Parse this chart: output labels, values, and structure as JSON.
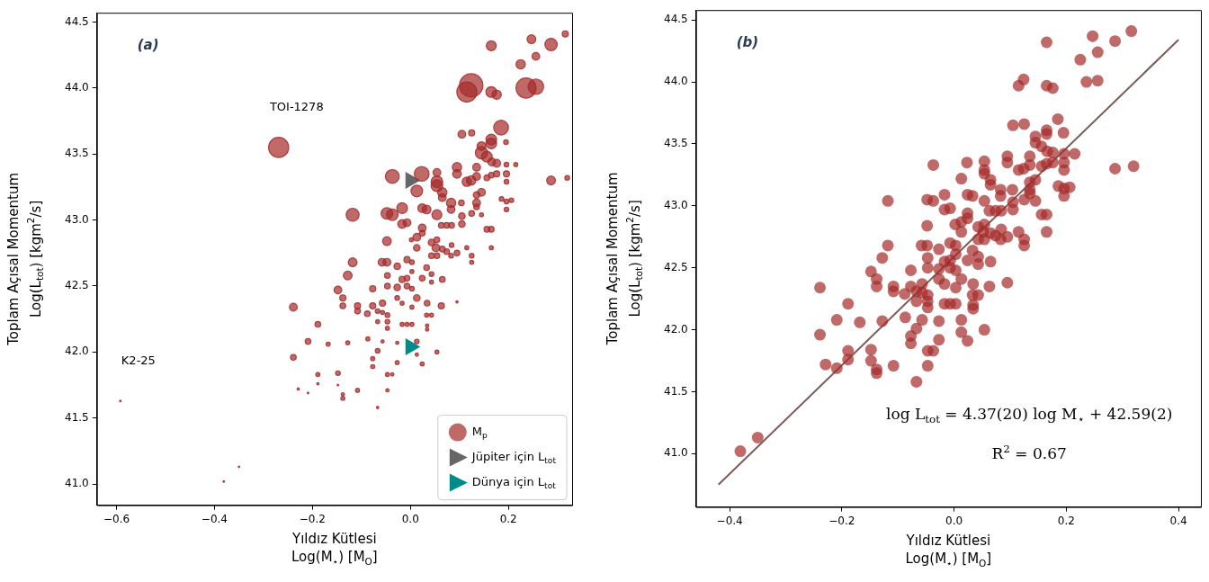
{
  "chart_data": [
    {
      "type": "bubble",
      "xlabel": "Yıldız Kütlesi\nLog(M$_{⋆}$) [M$_{O}$]",
      "ylabel": "Toplam Açısal Momentum\nLog(L$_{tot}$) [kgm$^{2}$/s]",
      "xlim": [
        -0.64,
        0.33
      ],
      "ylim": [
        40.84,
        44.57
      ],
      "xticks": [
        {
          "value": -0.6,
          "label": "−0.6"
        },
        {
          "value": -0.4,
          "label": "−0.4"
        },
        {
          "value": -0.2,
          "label": "−0.2"
        },
        {
          "value": 0,
          "label": "0.0"
        },
        {
          "value": 0.2,
          "label": "0.2"
        }
      ],
      "yticks": [
        {
          "value": 41,
          "label": "41.0"
        },
        {
          "value": 41.5,
          "label": "41.5"
        },
        {
          "value": 42,
          "label": "42.0"
        },
        {
          "value": 42.5,
          "label": "42.5"
        },
        {
          "value": 43,
          "label": "43.0"
        },
        {
          "value": 43.5,
          "label": "43.5"
        },
        {
          "value": 44,
          "label": "44.0"
        },
        {
          "value": 44.5,
          "label": "44.5"
        }
      ],
      "legend": "bottom right",
      "annotations": [
        "(a)",
        {
          "text": "TOI-1278",
          "x": -0.269,
          "y": 43.55
        },
        {
          "text": "K2-25",
          "x": -0.592,
          "y": 41.63
        }
      ],
      "series": [
        {
          "name": "M$_{p}$",
          "color": "#a52a2a",
          "x": [
            -0.269,
            0.124,
            0.115,
            0.165,
            0.176,
            0.236,
            0.256,
            0.165,
            0.247,
            0.287,
            0.316,
            0.256,
            0.225,
            0.185,
            0.105,
            0.125,
            0.165,
            0.165,
            0.145,
            0.145,
            0.156,
            0.166,
            0.176,
            0.195,
            0.196,
            0.215,
            0.196,
            0.196,
            0.287,
            0.32,
            -0.037,
            0.023,
            0.013,
            0.054,
            0.054,
            0.054,
            0.065,
            0.065,
            0.095,
            0.095,
            0.115,
            0.124,
            0.135,
            0.135,
            0.135,
            0.145,
            0.156,
            0.165,
            0.176,
            0.083,
            0.083,
            0.104,
            0.135,
            0.135,
            0.105,
            0.125,
            0.105,
            0.145,
            0.156,
            0.165,
            0.186,
            0.206,
            0.196,
            0.196,
            0.165,
            0.115,
            0.125,
            0.125,
            -0.118,
            -0.048,
            -0.037,
            -0.017,
            0.024,
            0.033,
            0.054,
            -0.017,
            -0.007,
            0.024,
            0.024,
            0.013,
            0.002,
            0.063,
            0.074,
            0.084,
            -0.048,
            0.013,
            0.043,
            0.054,
            0.052,
            0.065,
            0.074,
            0.084,
            0.095,
            0.043,
            0.054,
            0.083,
            -0.118,
            -0.058,
            -0.048,
            -0.007,
            0.003,
            -0.128,
            -0.148,
            -0.138,
            -0.239,
            -0.138,
            -0.108,
            -0.108,
            -0.088,
            -0.077,
            -0.077,
            -0.057,
            -0.047,
            -0.047,
            -0.027,
            -0.027,
            -0.017,
            -0.007,
            -0.007,
            0.003,
            0.003,
            0.013,
            0.024,
            0.033,
            0.043,
            0.043,
            0.065,
            0.034,
            0.063,
            0.043,
            0.033,
            -0.027,
            -0.017,
            0.003,
            -0.067,
            -0.057,
            -0.047,
            -0.067,
            -0.047,
            -0.047,
            -0.017,
            -0.007,
            0.003,
            0.034,
            0.034,
            0.095,
            -0.189,
            -0.209,
            -0.168,
            -0.128,
            -0.087,
            -0.057,
            -0.067,
            -0.027,
            -0.239,
            -0.077,
            -0.027,
            0.013,
            0.013,
            0.024,
            0.054,
            -0.189,
            -0.148,
            -0.077,
            -0.047,
            -0.037,
            -0.189,
            -0.148,
            -0.229,
            -0.209,
            -0.138,
            -0.138,
            -0.108,
            -0.047,
            -0.067,
            -0.592,
            -0.35,
            -0.381
          ],
          "values": [
            43.55,
            44.02,
            43.97,
            43.97,
            43.95,
            44.0,
            44.01,
            44.32,
            44.37,
            44.33,
            44.41,
            44.24,
            44.18,
            43.7,
            43.65,
            43.66,
            43.61,
            43.58,
            43.56,
            43.51,
            43.48,
            43.44,
            43.43,
            43.59,
            43.42,
            43.42,
            43.35,
            43.29,
            43.3,
            43.32,
            43.33,
            43.35,
            43.22,
            43.36,
            43.29,
            43.26,
            43.21,
            43.17,
            43.4,
            43.35,
            43.29,
            43.3,
            43.4,
            43.33,
            43.19,
            43.21,
            43.32,
            43.34,
            43.35,
            43.13,
            43.08,
            43.13,
            43.13,
            43.1,
            43.03,
            43.05,
            42.97,
            43.04,
            42.93,
            42.93,
            43.16,
            43.15,
            43.14,
            43.08,
            42.79,
            42.79,
            42.73,
            42.68,
            43.04,
            43.05,
            43.04,
            43.09,
            43.09,
            43.08,
            43.04,
            42.97,
            42.98,
            42.94,
            42.9,
            42.87,
            42.85,
            42.96,
            42.96,
            42.96,
            42.84,
            42.79,
            42.83,
            42.85,
            42.79,
            42.78,
            42.76,
            42.81,
            42.75,
            42.73,
            42.73,
            42.73,
            42.68,
            42.68,
            42.68,
            42.7,
            42.68,
            42.58,
            42.47,
            42.41,
            42.34,
            42.35,
            42.35,
            42.31,
            42.29,
            42.48,
            42.35,
            42.37,
            42.58,
            42.5,
            42.65,
            42.49,
            42.55,
            42.56,
            42.5,
            42.61,
            42.48,
            42.41,
            42.56,
            42.64,
            42.59,
            42.53,
            42.55,
            42.37,
            42.35,
            42.28,
            42.28,
            42.41,
            42.37,
            42.34,
            42.31,
            42.3,
            42.28,
            42.23,
            42.23,
            42.18,
            42.21,
            42.21,
            42.21,
            42.2,
            42.17,
            42.38,
            42.21,
            42.08,
            42.06,
            42.07,
            42.1,
            42.08,
            42.01,
            42.07,
            41.96,
            41.95,
            41.92,
            42.08,
            41.98,
            41.91,
            42.0,
            41.83,
            41.84,
            41.89,
            41.83,
            41.83,
            41.76,
            41.75,
            41.72,
            41.69,
            41.68,
            41.65,
            41.71,
            41.71,
            41.58,
            41.63,
            41.13,
            41.02
          ],
          "sizes": [
            0.74,
            1,
            0.74,
            0.21,
            0.16,
            0.74,
            0.44,
            0.18,
            0.14,
            0.28,
            0.07,
            0.11,
            0.16,
            0.4,
            0.11,
            0.07,
            0.21,
            0.21,
            0.14,
            0.28,
            0.21,
            0.11,
            0.11,
            0.04,
            0.04,
            0.03,
            0.07,
            0.04,
            0.14,
            0.04,
            0.35,
            0.4,
            0.25,
            0.11,
            0.25,
            0.25,
            0.16,
            0.11,
            0.16,
            0.14,
            0.16,
            0.16,
            0.11,
            0.11,
            0.08,
            0.11,
            0.06,
            0.06,
            0.07,
            0.16,
            0.11,
            0.06,
            0.11,
            0.06,
            0.08,
            0.06,
            0.08,
            0.03,
            0.06,
            0.06,
            0.04,
            0.04,
            0.04,
            0.04,
            0.03,
            0.03,
            0.04,
            0.03,
            0.31,
            0.25,
            0.25,
            0.21,
            0.14,
            0.14,
            0.18,
            0.14,
            0.11,
            0.11,
            0.06,
            0.11,
            0.03,
            0.06,
            0.06,
            0.06,
            0.14,
            0.08,
            0.08,
            0.06,
            0.11,
            0.06,
            0.06,
            0.04,
            0.06,
            0.06,
            0.06,
            0.04,
            0.14,
            0.11,
            0.11,
            0.07,
            0.04,
            0.14,
            0.11,
            0.07,
            0.11,
            0.06,
            0.07,
            0.06,
            0.06,
            0.07,
            0.07,
            0.07,
            0.06,
            0.06,
            0.08,
            0.08,
            0.07,
            0.06,
            0.06,
            0.03,
            0.04,
            0.08,
            0.06,
            0.06,
            0.04,
            0.03,
            0.06,
            0.06,
            0.07,
            0.03,
            0.03,
            0.04,
            0.03,
            0.03,
            0.04,
            0.03,
            0.04,
            0.03,
            0.04,
            0.03,
            0.03,
            0.03,
            0.03,
            0.02,
            0.02,
            0.01,
            0.06,
            0.06,
            0.03,
            0.03,
            0.03,
            0.02,
            0.04,
            0.02,
            0.06,
            0.03,
            0.03,
            0.04,
            0.02,
            0.03,
            0.03,
            0.03,
            0.04,
            0.03,
            0.03,
            0.02,
            0.01,
            0.005,
            0.01,
            0.005,
            0.02,
            0.03,
            0.03,
            0.02,
            0.01,
            0.005,
            0.004,
            0.005
          ]
        },
        {
          "name": "Jüpiter için L$_{tot}$",
          "type": "scatter",
          "marker": "triangle",
          "color": "#666666",
          "x": [
            0
          ],
          "values": [
            43.3
          ]
        },
        {
          "name": "Dünya için L$_{tot}$",
          "type": "scatter",
          "marker": "triangle",
          "color": "#008b8b",
          "x": [
            0
          ],
          "values": [
            42.04
          ]
        }
      ]
    },
    {
      "type": "scatter",
      "xlabel": "Yıldız Kütlesi\nLog(M$_{⋆}$) [M$_{O}$]",
      "ylabel": "Toplam Açısal Momentum\nLog(L$_{tot}$) [kgm$^{2}$/s]",
      "xlim": [
        -0.46,
        0.44
      ],
      "ylim": [
        40.57,
        44.58
      ],
      "xticks": [
        {
          "value": -0.4,
          "label": "−0.4"
        },
        {
          "value": -0.2,
          "label": "−0.2"
        },
        {
          "value": 0,
          "label": "0.0"
        },
        {
          "value": 0.2,
          "label": "0.2"
        },
        {
          "value": 0.4,
          "label": "0.4"
        }
      ],
      "yticks": [
        {
          "value": 41,
          "label": "41.0"
        },
        {
          "value": 41.5,
          "label": "41.5"
        },
        {
          "value": 42,
          "label": "42.0"
        },
        {
          "value": 42.5,
          "label": "42.5"
        },
        {
          "value": 43,
          "label": "43.0"
        },
        {
          "value": 43.5,
          "label": "43.5"
        },
        {
          "value": 44,
          "label": "44.0"
        },
        {
          "value": 44.5,
          "label": "44.5"
        }
      ],
      "annotations": [
        "(b)",
        "log L$_{tot}$ = 4.37(20) log M$_{⋆}$ + 42.59(2)",
        "R$^{2}$ = 0.67"
      ],
      "series": [
        {
          "color": "#a52a2a",
          "marker": "circle",
          "x": [
            0.124,
            0.115,
            0.165,
            0.176,
            0.236,
            0.256,
            0.165,
            0.247,
            0.287,
            0.316,
            0.256,
            0.225,
            0.185,
            0.105,
            0.125,
            0.165,
            0.165,
            0.145,
            0.145,
            0.156,
            0.166,
            0.176,
            0.195,
            0.196,
            0.215,
            0.196,
            0.196,
            0.287,
            0.32,
            -0.037,
            0.023,
            0.013,
            0.054,
            0.054,
            0.054,
            0.065,
            0.065,
            0.095,
            0.095,
            0.115,
            0.124,
            0.135,
            0.135,
            0.135,
            0.145,
            0.156,
            0.165,
            0.176,
            0.083,
            0.083,
            0.104,
            0.135,
            0.135,
            0.105,
            0.125,
            0.105,
            0.145,
            0.156,
            0.165,
            0.186,
            0.206,
            0.196,
            0.196,
            0.165,
            0.115,
            0.125,
            0.125,
            -0.118,
            -0.048,
            -0.037,
            -0.017,
            0.024,
            0.033,
            0.054,
            -0.017,
            -0.007,
            0.024,
            0.024,
            0.013,
            0.002,
            0.063,
            0.074,
            0.084,
            -0.048,
            0.013,
            0.043,
            0.054,
            0.052,
            0.065,
            0.074,
            0.084,
            0.095,
            0.043,
            0.054,
            0.083,
            -0.118,
            -0.058,
            -0.048,
            -0.007,
            0.003,
            -0.128,
            -0.148,
            -0.138,
            -0.239,
            -0.138,
            -0.108,
            -0.108,
            -0.088,
            -0.077,
            -0.077,
            -0.057,
            -0.047,
            -0.047,
            -0.027,
            -0.027,
            -0.017,
            -0.007,
            -0.007,
            0.003,
            0.003,
            0.013,
            0.024,
            0.033,
            0.043,
            0.043,
            0.065,
            0.034,
            0.063,
            0.043,
            0.033,
            -0.027,
            -0.017,
            0.003,
            -0.067,
            -0.057,
            -0.047,
            -0.067,
            -0.047,
            -0.047,
            -0.017,
            -0.007,
            0.003,
            0.034,
            0.034,
            0.095,
            -0.189,
            -0.209,
            -0.168,
            -0.128,
            -0.087,
            -0.057,
            -0.067,
            -0.027,
            -0.239,
            -0.077,
            -0.027,
            0.013,
            0.013,
            0.024,
            0.054,
            -0.189,
            -0.148,
            -0.077,
            -0.047,
            -0.037,
            -0.189,
            -0.148,
            -0.229,
            -0.209,
            -0.138,
            -0.138,
            -0.108,
            -0.047,
            -0.067,
            -0.35,
            -0.381
          ],
          "values": [
            44.02,
            43.97,
            43.97,
            43.95,
            44.0,
            44.01,
            44.32,
            44.37,
            44.33,
            44.41,
            44.24,
            44.18,
            43.7,
            43.65,
            43.66,
            43.61,
            43.58,
            43.56,
            43.51,
            43.48,
            43.44,
            43.43,
            43.59,
            43.42,
            43.42,
            43.35,
            43.29,
            43.3,
            43.32,
            43.33,
            43.35,
            43.22,
            43.36,
            43.29,
            43.26,
            43.21,
            43.17,
            43.4,
            43.35,
            43.29,
            43.3,
            43.4,
            43.33,
            43.19,
            43.21,
            43.32,
            43.34,
            43.35,
            43.13,
            43.08,
            43.13,
            43.13,
            43.1,
            43.03,
            43.05,
            42.97,
            43.04,
            42.93,
            42.93,
            43.16,
            43.15,
            43.14,
            43.08,
            42.79,
            42.79,
            42.73,
            42.68,
            43.04,
            43.05,
            43.04,
            43.09,
            43.09,
            43.08,
            43.04,
            42.97,
            42.98,
            42.94,
            42.9,
            42.87,
            42.85,
            42.96,
            42.96,
            42.96,
            42.84,
            42.79,
            42.83,
            42.85,
            42.79,
            42.78,
            42.76,
            42.81,
            42.75,
            42.73,
            42.73,
            42.73,
            42.68,
            42.68,
            42.68,
            42.7,
            42.68,
            42.58,
            42.47,
            42.41,
            42.34,
            42.35,
            42.35,
            42.31,
            42.29,
            42.48,
            42.35,
            42.37,
            42.58,
            42.5,
            42.65,
            42.49,
            42.55,
            42.56,
            42.5,
            42.61,
            42.48,
            42.41,
            42.56,
            42.64,
            42.59,
            42.53,
            42.55,
            42.37,
            42.35,
            42.28,
            42.28,
            42.41,
            42.37,
            42.34,
            42.31,
            42.3,
            42.28,
            42.23,
            42.23,
            42.18,
            42.21,
            42.21,
            42.21,
            42.2,
            42.17,
            42.38,
            42.21,
            42.08,
            42.06,
            42.07,
            42.1,
            42.08,
            42.01,
            42.07,
            41.96,
            41.95,
            41.92,
            42.08,
            41.98,
            41.91,
            42.0,
            41.83,
            41.84,
            41.89,
            41.83,
            41.83,
            41.76,
            41.75,
            41.72,
            41.69,
            41.68,
            41.65,
            41.71,
            41.71,
            41.58,
            41.13,
            41.02
          ]
        },
        {
          "type": "line",
          "color": "#7b5b57",
          "x": [
            -0.42,
            0.4
          ],
          "values": [
            40.75,
            44.34
          ]
        }
      ]
    }
  ]
}
